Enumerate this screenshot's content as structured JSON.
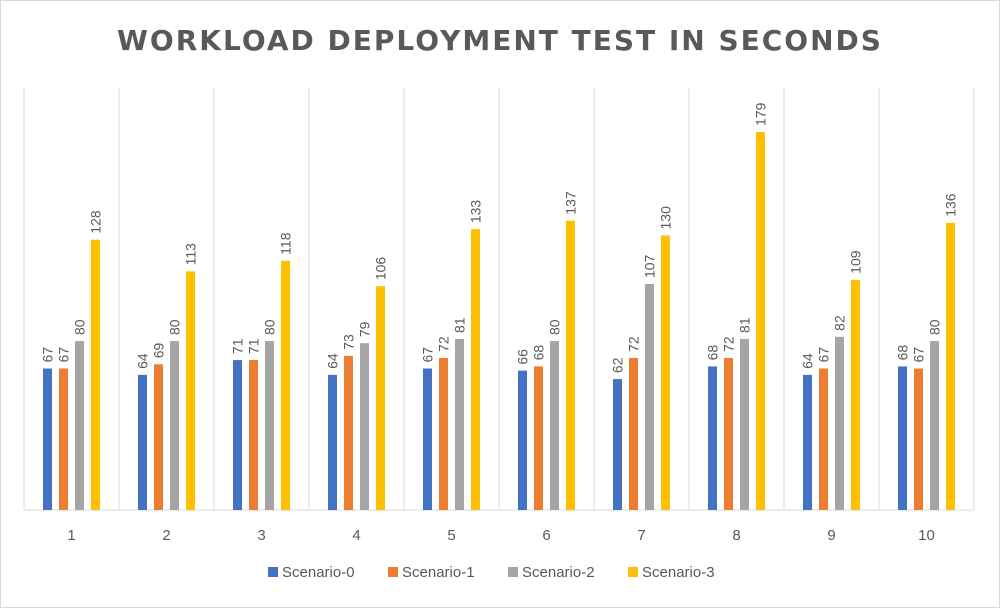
{
  "chart_data": {
    "type": "bar",
    "title": "WORKLOAD DEPLOYMENT TEST IN SECONDS",
    "xlabel": "",
    "ylabel": "",
    "ylim": [
      0,
      190
    ],
    "grid": "vertical",
    "legend_position": "bottom",
    "categories": [
      "1",
      "2",
      "3",
      "4",
      "5",
      "6",
      "7",
      "8",
      "9",
      "10"
    ],
    "series": [
      {
        "name": "Scenario-0",
        "color": "#4472c4",
        "values": [
          67,
          64,
          71,
          64,
          67,
          66,
          62,
          68,
          64,
          68
        ]
      },
      {
        "name": "Scenario-1",
        "color": "#ed7d31",
        "values": [
          67,
          69,
          71,
          73,
          72,
          68,
          72,
          72,
          67,
          67
        ]
      },
      {
        "name": "Scenario-2",
        "color": "#a5a5a5",
        "values": [
          80,
          80,
          80,
          79,
          81,
          80,
          107,
          81,
          82,
          80
        ]
      },
      {
        "name": "Scenario-3",
        "color": "#ffc000",
        "values": [
          128,
          113,
          118,
          106,
          133,
          137,
          130,
          179,
          109,
          136
        ]
      }
    ]
  }
}
